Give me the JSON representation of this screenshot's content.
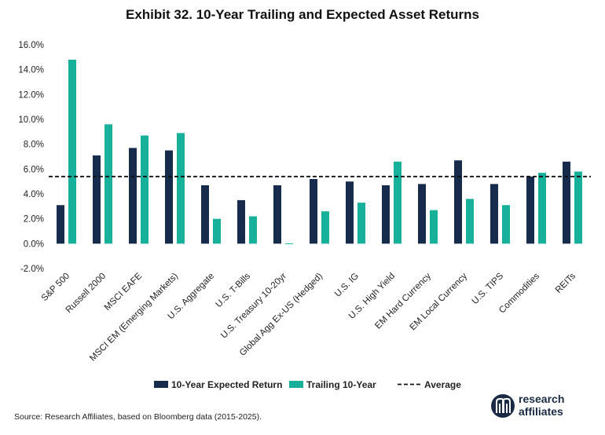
{
  "title": "Exhibit 32. 10-Year Trailing and Expected Asset Returns",
  "source": "Source: Research Affiliates, based on Bloomberg data (2015-2025).",
  "logo": {
    "line1": "research",
    "line2": "affiliates"
  },
  "colors": {
    "expected": "#172b4d",
    "trailing": "#17b19b",
    "average_line": "#111111"
  },
  "chart_data": {
    "type": "bar",
    "title": "Exhibit 32. 10-Year Trailing and Expected Asset Returns",
    "categories": [
      "S&P 500",
      "Russell 2000",
      "MSCI EAFE",
      "MSCI EM (Emerging Markets)",
      "U.S. Aggregate",
      "U.S. T-Bills",
      "U.S. Treasury 10-20yr",
      "Global Agg Ex-US (Hedged)",
      "U.S. IG",
      "U.S. High Yield",
      "EM Hard Currency",
      "EM Local Currency",
      "U.S. TIPS",
      "Commodities",
      "REITs"
    ],
    "series": [
      {
        "name": "10-Year Expected Return",
        "values": [
          3.1,
          7.1,
          7.7,
          7.5,
          4.7,
          3.5,
          4.7,
          5.2,
          5.0,
          4.7,
          4.8,
          6.7,
          4.8,
          5.4,
          6.6
        ]
      },
      {
        "name": "Trailing 10-Year",
        "values": [
          14.8,
          9.6,
          8.7,
          8.9,
          2.0,
          2.2,
          0.0,
          2.6,
          3.3,
          6.6,
          2.7,
          3.6,
          3.1,
          5.7,
          5.8
        ]
      }
    ],
    "average": {
      "name": "Average",
      "value": 5.4
    },
    "ylim": [
      -2,
      16
    ],
    "yticks": [
      "-2.0%",
      "0.0%",
      "2.0%",
      "4.0%",
      "6.0%",
      "8.0%",
      "10.0%",
      "12.0%",
      "14.0%",
      "16.0%"
    ],
    "xlabel": "",
    "ylabel": "",
    "legend_position": "bottom",
    "grid": false
  }
}
